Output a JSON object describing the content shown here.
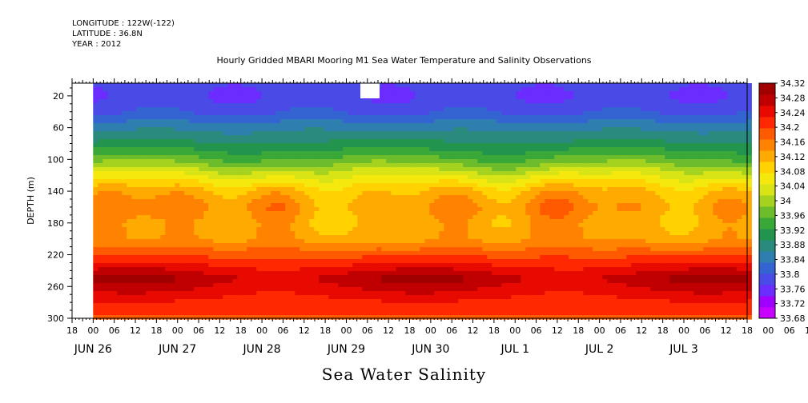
{
  "meta": {
    "longitude": "LONGITUDE : 122W(-122)",
    "latitude": "LATITUDE : 36.8N",
    "year": "YEAR : 2012"
  },
  "chart_data": {
    "type": "heatmap",
    "title": "Hourly Gridded MBARI Mooring M1 Sea Water Temperature and Salinity Observations",
    "xlabel": "Sea Water Salinity",
    "ylabel": "DEPTH (m)",
    "ylim": [
      300,
      4
    ],
    "y_ticks": [
      "20",
      "60",
      "100",
      "140",
      "180",
      "220",
      "260",
      "300"
    ],
    "y_tick_values": [
      20,
      60,
      100,
      140,
      180,
      220,
      260,
      300
    ],
    "x_hour_ticks": [
      "18",
      "00",
      "06",
      "12",
      "18",
      "00",
      "06",
      "12",
      "18",
      "00",
      "06",
      "12",
      "18",
      "00",
      "06",
      "12",
      "18",
      "00",
      "06",
      "12",
      "18",
      "00",
      "06",
      "12",
      "18",
      "00",
      "06",
      "12",
      "18",
      "00",
      "06",
      "12",
      "18",
      "00",
      "06",
      "12",
      "18",
      "00",
      "06",
      "12",
      "18"
    ],
    "x_day_labels": [
      "JUN 26",
      "JUN 27",
      "JUN 28",
      "JUN 29",
      "JUN 30",
      "JUL  1",
      "JUL  2",
      "JUL  3"
    ],
    "x_range_hours": [
      -6,
      186
    ],
    "colorbar_levels": [
      "34.32",
      "34.28",
      "34.24",
      "34.2",
      "34.16",
      "34.12",
      "34.08",
      "34.04",
      "34",
      "33.96",
      "33.92",
      "33.88",
      "33.84",
      "33.8",
      "33.76",
      "33.72",
      "33.68"
    ],
    "depth_profile": {
      "depths": [
        4,
        20,
        40,
        60,
        80,
        100,
        120,
        140,
        160,
        180,
        200,
        220,
        240,
        250,
        260,
        280,
        300
      ],
      "salinity": [
        33.79,
        33.79,
        33.81,
        33.86,
        33.9,
        33.96,
        34.04,
        34.11,
        34.14,
        34.12,
        34.13,
        34.19,
        34.25,
        34.28,
        34.26,
        34.22,
        34.19
      ]
    },
    "colors": [
      "#c800ff",
      "#a000ff",
      "#6a2cff",
      "#4a4ae6",
      "#3464d2",
      "#2e7fb0",
      "#2a8a7e",
      "#22944e",
      "#3aa838",
      "#6cbc2c",
      "#a4d21e",
      "#d8e416",
      "#f4e80c",
      "#ffd200",
      "#ffaa00",
      "#ff8200",
      "#ff5a00",
      "#ff2800",
      "#e80a00",
      "#c00000",
      "#a00000"
    ]
  }
}
